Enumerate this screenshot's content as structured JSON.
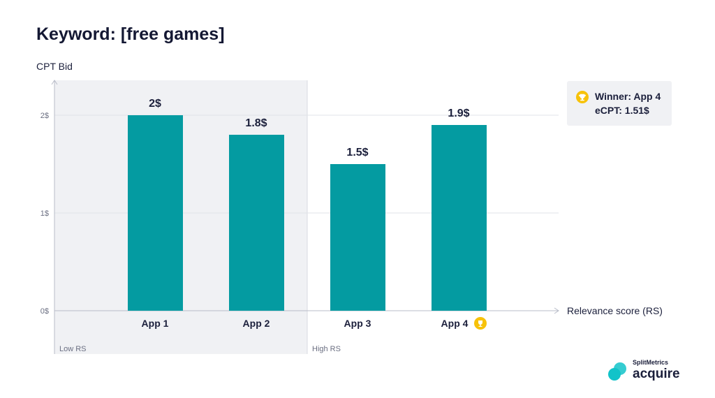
{
  "chart_data": {
    "type": "bar",
    "title": "Keyword: [free games]",
    "ylabel": "CPT Bid",
    "xlabel": "Relevance score (RS)",
    "categories": [
      "App 1",
      "App 2",
      "App 3",
      "App 4"
    ],
    "values": [
      2,
      1.8,
      1.5,
      1.9
    ],
    "data_labels": [
      "2$",
      "1.8$",
      "1.5$",
      "1.9$"
    ],
    "yticks": [
      {
        "v": 0,
        "label": "0$"
      },
      {
        "v": 1,
        "label": "1$"
      },
      {
        "v": 2,
        "label": "2$"
      }
    ],
    "ylim": [
      0,
      2.35
    ],
    "grid": true,
    "regions": [
      {
        "label": "Low RS",
        "categories": [
          "App 1",
          "App 2"
        ]
      },
      {
        "label": "High RS",
        "categories": [
          "App 3",
          "App 4"
        ]
      }
    ],
    "winner_category": "App 4",
    "colors": {
      "bar": "#049ba1",
      "shade": "#f0f1f4",
      "text": "#1b1f3b",
      "trophy": "#f7c20a"
    }
  },
  "winner_box": {
    "line1": "Winner: App 4",
    "line2": "eCPT: 1.51$",
    "icon": "trophy-icon"
  },
  "logo": {
    "brand": "SplitMetrics",
    "product": "acquire"
  }
}
